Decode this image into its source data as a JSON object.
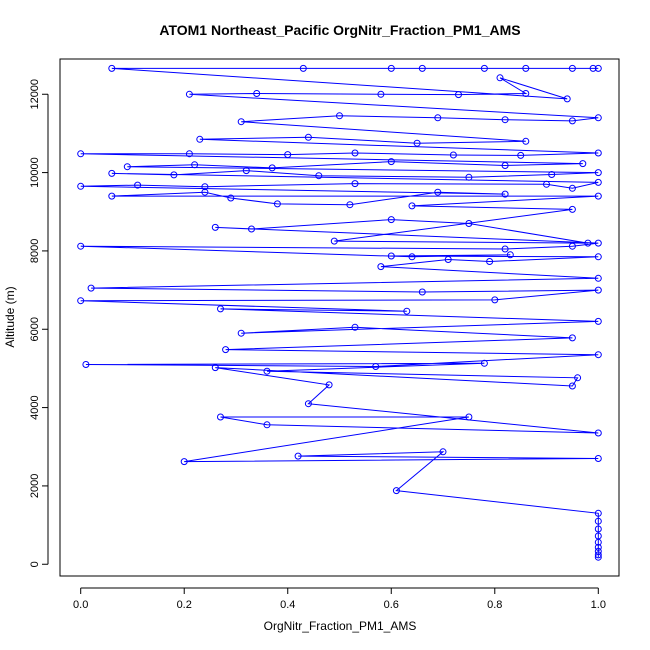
{
  "chart_data": {
    "type": "line",
    "title": "ATOM1 Northeast_Pacific OrgNitr_Fraction_PM1_AMS",
    "xlabel": "OrgNitr_Fraction_PM1_AMS",
    "ylabel": "Altitude (m)",
    "xlim": [
      -0.04,
      1.04
    ],
    "ylim": [
      -300,
      12900
    ],
    "xticks": [
      "0.0",
      "0.2",
      "0.4",
      "0.6",
      "0.8",
      "1.0"
    ],
    "xtick_values": [
      0,
      0.2,
      0.4,
      0.6,
      0.8,
      1.0
    ],
    "yticks": [
      "0",
      "2000",
      "4000",
      "6000",
      "8000",
      "10000",
      "12000"
    ],
    "ytick_values": [
      0,
      2000,
      4000,
      6000,
      8000,
      10000,
      12000
    ],
    "grid": false,
    "series": [
      {
        "color": "#0000ff",
        "marker": "open-circle",
        "points": [
          [
            1.0,
            180
          ],
          [
            1.0,
            240
          ],
          [
            1.0,
            330
          ],
          [
            1.0,
            430
          ],
          [
            1.0,
            560
          ],
          [
            1.0,
            720
          ],
          [
            1.0,
            900
          ],
          [
            1.0,
            1100
          ],
          [
            1.0,
            1300
          ],
          [
            0.61,
            1880
          ],
          [
            0.7,
            2870
          ],
          [
            0.42,
            2760
          ],
          [
            1.0,
            2700
          ],
          [
            0.2,
            2620
          ],
          [
            0.75,
            3760
          ],
          [
            0.27,
            3760
          ],
          [
            0.36,
            3560
          ],
          [
            1.0,
            3350
          ],
          [
            0.44,
            4100
          ],
          [
            0.48,
            4580
          ],
          [
            0.26,
            5020
          ],
          [
            0.95,
            4550
          ],
          [
            0.96,
            4760
          ],
          [
            0.36,
            4930
          ],
          [
            0.78,
            5130
          ],
          [
            0.01,
            5100
          ],
          [
            0.57,
            5050
          ],
          [
            1.0,
            5350
          ],
          [
            0.28,
            5480
          ],
          [
            0.95,
            5780
          ],
          [
            0.53,
            6050
          ],
          [
            0.31,
            5900
          ],
          [
            1.0,
            6200
          ],
          [
            0.27,
            6520
          ],
          [
            0.63,
            6460
          ],
          [
            0.0,
            6730
          ],
          [
            0.8,
            6750
          ],
          [
            1.0,
            7000
          ],
          [
            0.66,
            6950
          ],
          [
            0.02,
            7050
          ],
          [
            1.0,
            7300
          ],
          [
            0.58,
            7600
          ],
          [
            0.71,
            7780
          ],
          [
            0.79,
            7730
          ],
          [
            1.0,
            7850
          ],
          [
            0.6,
            7870
          ],
          [
            0.83,
            7900
          ],
          [
            0.64,
            7850
          ],
          [
            0.0,
            8120
          ],
          [
            0.82,
            8050
          ],
          [
            0.95,
            8120
          ],
          [
            1.0,
            8200
          ],
          [
            0.26,
            8600
          ],
          [
            0.33,
            8560
          ],
          [
            0.6,
            8800
          ],
          [
            0.75,
            8700
          ],
          [
            0.98,
            8200
          ],
          [
            0.49,
            8250
          ],
          [
            0.95,
            9060
          ],
          [
            0.64,
            9150
          ],
          [
            1.0,
            9400
          ],
          [
            0.06,
            9400
          ],
          [
            0.24,
            9500
          ],
          [
            0.29,
            9350
          ],
          [
            0.38,
            9200
          ],
          [
            0.52,
            9180
          ],
          [
            0.69,
            9500
          ],
          [
            0.82,
            9450
          ],
          [
            0.0,
            9650
          ],
          [
            0.11,
            9680
          ],
          [
            0.24,
            9640
          ],
          [
            0.53,
            9720
          ],
          [
            0.9,
            9700
          ],
          [
            0.95,
            9600
          ],
          [
            1.0,
            9750
          ],
          [
            0.06,
            9980
          ],
          [
            0.18,
            9940
          ],
          [
            0.32,
            10050
          ],
          [
            0.46,
            9920
          ],
          [
            0.75,
            9880
          ],
          [
            0.91,
            9950
          ],
          [
            1.0,
            10000
          ],
          [
            0.09,
            10150
          ],
          [
            0.22,
            10200
          ],
          [
            0.37,
            10120
          ],
          [
            0.6,
            10280
          ],
          [
            0.82,
            10180
          ],
          [
            0.97,
            10230
          ],
          [
            0.0,
            10480
          ],
          [
            0.21,
            10480
          ],
          [
            0.4,
            10460
          ],
          [
            0.53,
            10500
          ],
          [
            0.72,
            10450
          ],
          [
            0.85,
            10440
          ],
          [
            1.0,
            10500
          ],
          [
            0.23,
            10850
          ],
          [
            0.44,
            10900
          ],
          [
            0.65,
            10750
          ],
          [
            0.86,
            10800
          ],
          [
            0.31,
            11300
          ],
          [
            0.5,
            11450
          ],
          [
            0.69,
            11400
          ],
          [
            0.82,
            11350
          ],
          [
            0.95,
            11320
          ],
          [
            1.0,
            11400
          ],
          [
            0.21,
            12000
          ],
          [
            0.34,
            12020
          ],
          [
            0.58,
            12000
          ],
          [
            0.73,
            11990
          ],
          [
            0.86,
            12020
          ],
          [
            0.81,
            12420
          ],
          [
            0.94,
            11880
          ],
          [
            0.06,
            12660
          ],
          [
            0.43,
            12660
          ],
          [
            0.6,
            12660
          ],
          [
            0.66,
            12660
          ],
          [
            0.78,
            12660
          ],
          [
            0.86,
            12660
          ],
          [
            0.95,
            12660
          ],
          [
            0.99,
            12660
          ],
          [
            1.0,
            12660
          ]
        ]
      }
    ]
  }
}
